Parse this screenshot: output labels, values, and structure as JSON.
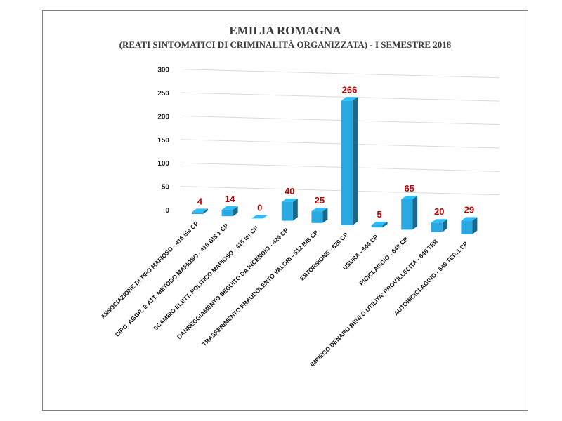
{
  "chart_data": {
    "type": "bar",
    "title": "EMILIA ROMAGNA",
    "subtitle": "(REATI SINTOMATICI DI CRIMINALITÀ ORGANIZZATA) - I SEMESTRE 2018",
    "categories": [
      "ASSOCIAZIONE DI TIPO MAFIOSO - 416 bis CP",
      "CIRC. AGGR. E ATT. METODO MAFIOSO - 416 BIS 1 CP",
      "SCAMBIO ELETT. POLITICO MAFIOSO - 416 ter CP",
      "DANNEGGIAMENTO SEGUITO DA INCENDIO - 424 CP",
      "TRASFERIMENTO FRAUDOLENTO VALORI - 512 BIS CP",
      "ESTORSIONE - 629 CP",
      "USURA - 644 CP",
      "RICICLAGGIO - 648 CP",
      "IMPIEGO DENARO BENI O UTILITA' PROV.ILLECITA - 648 TER",
      "AUTORICICLAGGIO - 648 TER.1 CP"
    ],
    "values": [
      4,
      14,
      0,
      40,
      25,
      266,
      5,
      65,
      20,
      29
    ],
    "data_labels": [
      "4",
      "14",
      "0",
      "40",
      "25",
      "266",
      "5",
      "65",
      "20",
      "29"
    ],
    "yticks": [
      "0",
      "50",
      "100",
      "150",
      "200",
      "250",
      "300"
    ],
    "ylim": [
      0,
      300
    ],
    "grid": true,
    "bar_color": "#29a9e1",
    "label_color": "#c00000"
  }
}
